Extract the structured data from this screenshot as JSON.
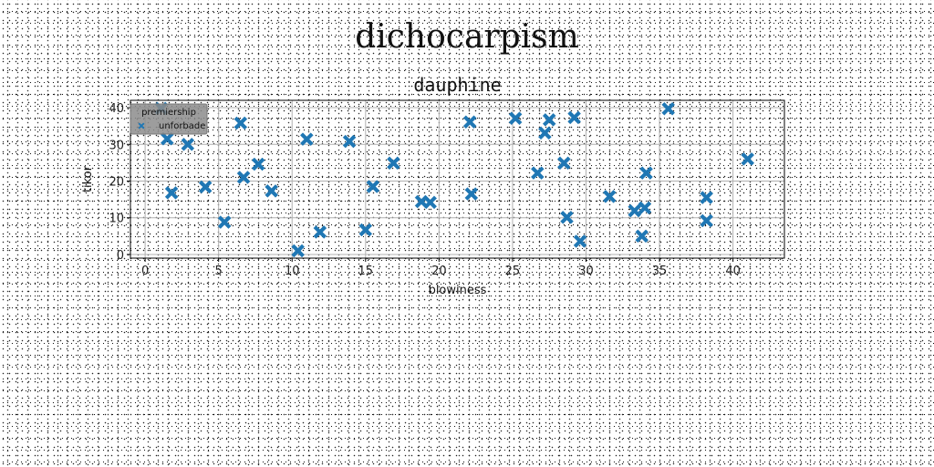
{
  "suptitle": "dichocarpism",
  "chart_data": {
    "type": "scatter",
    "title": "dauphine",
    "xlabel": "blowiness",
    "ylabel": "tikor",
    "xlim": [
      -1,
      43.5
    ],
    "ylim": [
      -1,
      42
    ],
    "xticks": [
      0,
      5,
      10,
      15,
      20,
      25,
      30,
      35,
      40
    ],
    "yticks": [
      0,
      10,
      20,
      30,
      40
    ],
    "grid": true,
    "legend": {
      "title": "premiership",
      "placement": "top-left"
    },
    "series": [
      {
        "name": "unforbade",
        "color": "#1f77b4",
        "marker": "x-filled",
        "points": [
          [
            1.1,
            39.8
          ],
          [
            1.5,
            31.5
          ],
          [
            1.8,
            16.8
          ],
          [
            2.9,
            30.0
          ],
          [
            4.1,
            18.4
          ],
          [
            5.4,
            8.8
          ],
          [
            6.5,
            35.8
          ],
          [
            6.7,
            21.0
          ],
          [
            7.7,
            24.6
          ],
          [
            8.6,
            17.3
          ],
          [
            10.4,
            1.0
          ],
          [
            11.0,
            31.4
          ],
          [
            11.9,
            6.1
          ],
          [
            13.9,
            30.8
          ],
          [
            15.0,
            6.7
          ],
          [
            15.5,
            18.5
          ],
          [
            16.9,
            24.9
          ],
          [
            18.8,
            14.4
          ],
          [
            19.4,
            14.2
          ],
          [
            22.1,
            36.1
          ],
          [
            22.2,
            16.5
          ],
          [
            25.2,
            37.1
          ],
          [
            26.7,
            22.2
          ],
          [
            27.2,
            33.1
          ],
          [
            27.5,
            36.7
          ],
          [
            28.5,
            24.9
          ],
          [
            28.7,
            10.1
          ],
          [
            29.2,
            37.3
          ],
          [
            29.6,
            3.6
          ],
          [
            31.6,
            15.8
          ],
          [
            33.3,
            11.9
          ],
          [
            33.8,
            5.0
          ],
          [
            34.0,
            12.7
          ],
          [
            34.1,
            22.2
          ],
          [
            35.6,
            39.7
          ],
          [
            38.2,
            15.5
          ],
          [
            38.2,
            9.2
          ],
          [
            41.0,
            26.0
          ]
        ]
      }
    ]
  }
}
